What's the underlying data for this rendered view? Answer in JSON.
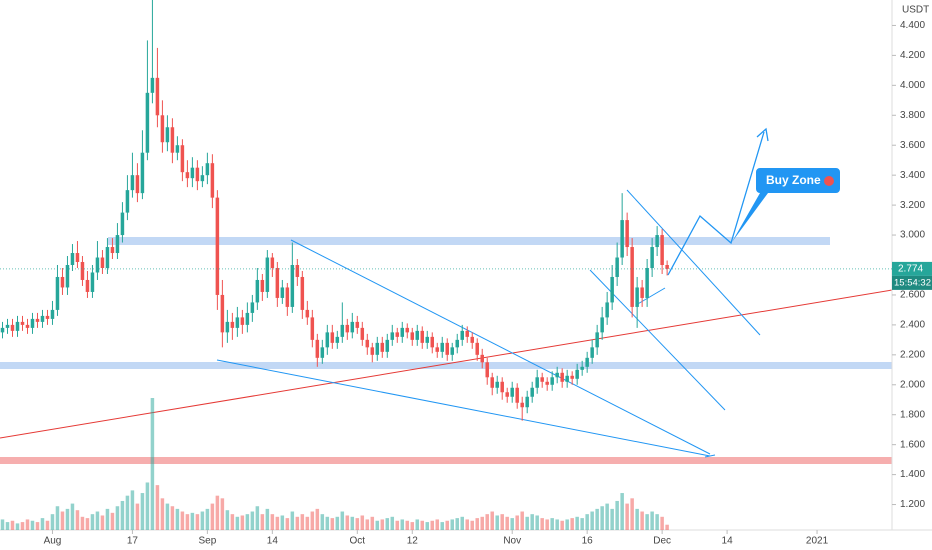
{
  "chart_data": {
    "type": "candlestick",
    "currency": "USDT",
    "up_color": "#26a69a",
    "down_color": "#ef5350",
    "ylim": [
      1.03,
      4.57
    ],
    "yticks": [
      {
        "value": 4.4,
        "label": "4.400"
      },
      {
        "value": 4.2,
        "label": "4.200"
      },
      {
        "value": 4.0,
        "label": "4.000"
      },
      {
        "value": 3.8,
        "label": "3.800"
      },
      {
        "value": 3.6,
        "label": "3.600"
      },
      {
        "value": 3.4,
        "label": "3.400"
      },
      {
        "value": 3.2,
        "label": "3.200"
      },
      {
        "value": 3.0,
        "label": "3.000"
      },
      {
        "value": 2.6,
        "label": "2.600"
      },
      {
        "value": 2.4,
        "label": "2.400"
      },
      {
        "value": 2.2,
        "label": "2.200"
      },
      {
        "value": 2.0,
        "label": "2.000"
      },
      {
        "value": 1.8,
        "label": "1.800"
      },
      {
        "value": 1.6,
        "label": "1.600"
      },
      {
        "value": 1.4,
        "label": "1.400"
      },
      {
        "value": 1.2,
        "label": "1.200"
      }
    ],
    "xlim": [
      -0.5,
      178
    ],
    "xticks": [
      {
        "value": 10,
        "label": "Aug"
      },
      {
        "value": 26,
        "label": "17"
      },
      {
        "value": 41,
        "label": "Sep"
      },
      {
        "value": 54,
        "label": "14"
      },
      {
        "value": 71,
        "label": "Oct"
      },
      {
        "value": 82,
        "label": "12"
      },
      {
        "value": 102,
        "label": "Nov"
      },
      {
        "value": 117,
        "label": "16"
      },
      {
        "value": 132,
        "label": "Dec"
      },
      {
        "value": 145,
        "label": "14"
      },
      {
        "value": 163,
        "label": "2021"
      }
    ],
    "last_price": 2.774,
    "countdown": "15:54:32",
    "annotation": "Buy Zone",
    "open": [
      2.35,
      2.38,
      2.4,
      2.36,
      2.42,
      2.4,
      2.38,
      2.44,
      2.42,
      2.46,
      2.44,
      2.5,
      2.72,
      2.65,
      2.8,
      2.88,
      2.82,
      2.7,
      2.62,
      2.75,
      2.85,
      2.78,
      2.92,
      2.88,
      3.0,
      3.15,
      3.3,
      3.4,
      3.28,
      3.55,
      3.95,
      4.05,
      3.8,
      3.62,
      3.72,
      3.55,
      3.6,
      3.42,
      3.38,
      3.45,
      3.36,
      3.4,
      3.48,
      3.25,
      2.6,
      2.35,
      2.42,
      2.38,
      2.45,
      2.4,
      2.48,
      2.55,
      2.7,
      2.62,
      2.85,
      2.78,
      2.58,
      2.65,
      2.52,
      2.8,
      2.72,
      2.5,
      2.45,
      2.3,
      2.18,
      2.25,
      2.35,
      2.28,
      2.32,
      2.4,
      2.35,
      2.42,
      2.38,
      2.3,
      2.25,
      2.2,
      2.28,
      2.22,
      2.3,
      2.35,
      2.32,
      2.38,
      2.35,
      2.3,
      2.36,
      2.28,
      2.32,
      2.25,
      2.22,
      2.28,
      2.2,
      2.25,
      2.3,
      2.36,
      2.32,
      2.28,
      2.2,
      2.15,
      2.05,
      1.98,
      2.02,
      1.95,
      1.92,
      1.98,
      1.88,
      1.85,
      1.92,
      1.98,
      2.05,
      2.02,
      2.0,
      2.05,
      2.08,
      2.02,
      2.06,
      2.04,
      2.1,
      2.12,
      2.18,
      2.25,
      2.35,
      2.45,
      2.55,
      2.72,
      2.85,
      3.1,
      2.92,
      2.52,
      2.65,
      2.58,
      2.78,
      2.92,
      3.0,
      2.8
    ],
    "high": [
      2.42,
      2.44,
      2.44,
      2.46,
      2.46,
      2.44,
      2.48,
      2.48,
      2.5,
      2.5,
      2.56,
      2.8,
      2.78,
      2.86,
      2.94,
      2.96,
      2.86,
      2.76,
      2.8,
      2.96,
      2.9,
      2.98,
      2.98,
      3.08,
      3.22,
      3.4,
      3.55,
      3.48,
      3.7,
      4.3,
      4.57,
      4.25,
      3.9,
      3.8,
      3.78,
      3.66,
      3.64,
      3.5,
      3.52,
      3.5,
      3.46,
      3.55,
      3.54,
      3.3,
      2.7,
      2.5,
      2.48,
      2.52,
      2.5,
      2.55,
      2.6,
      2.78,
      2.74,
      2.9,
      2.88,
      2.82,
      2.7,
      2.68,
      2.95,
      2.84,
      2.76,
      2.56,
      2.5,
      2.34,
      2.3,
      2.4,
      2.4,
      2.36,
      2.55,
      2.44,
      2.48,
      2.46,
      2.42,
      2.34,
      2.28,
      2.32,
      2.32,
      2.34,
      2.4,
      2.38,
      2.42,
      2.41,
      2.38,
      2.4,
      2.39,
      2.36,
      2.35,
      2.28,
      2.32,
      2.31,
      2.28,
      2.34,
      2.4,
      2.39,
      2.35,
      2.31,
      2.24,
      2.18,
      2.08,
      2.06,
      2.05,
      1.98,
      2.02,
      2.01,
      1.92,
      1.96,
      2.02,
      2.1,
      2.08,
      2.05,
      2.09,
      2.12,
      2.11,
      2.1,
      2.09,
      2.14,
      2.16,
      2.22,
      2.3,
      2.4,
      2.52,
      2.62,
      2.8,
      2.95,
      3.28,
      3.15,
      2.98,
      2.72,
      2.7,
      2.84,
      2.98,
      3.06,
      3.04,
      2.83
    ],
    "low": [
      2.31,
      2.34,
      2.32,
      2.32,
      2.36,
      2.34,
      2.34,
      2.38,
      2.38,
      2.4,
      2.4,
      2.46,
      2.6,
      2.6,
      2.76,
      2.78,
      2.66,
      2.58,
      2.58,
      2.7,
      2.74,
      2.74,
      2.84,
      2.84,
      2.95,
      3.1,
      3.25,
      3.22,
      3.24,
      3.5,
      3.88,
      3.72,
      3.55,
      3.56,
      3.48,
      3.5,
      3.36,
      3.32,
      3.32,
      3.3,
      3.32,
      3.34,
      3.18,
      2.5,
      2.25,
      2.28,
      2.3,
      2.32,
      2.34,
      2.35,
      2.42,
      2.5,
      2.56,
      2.58,
      2.72,
      2.52,
      2.54,
      2.46,
      2.48,
      2.66,
      2.44,
      2.4,
      2.25,
      2.12,
      2.14,
      2.2,
      2.24,
      2.24,
      2.28,
      2.3,
      2.31,
      2.34,
      2.26,
      2.2,
      2.15,
      2.16,
      2.18,
      2.18,
      2.26,
      2.28,
      2.28,
      2.31,
      2.26,
      2.26,
      2.24,
      2.24,
      2.21,
      2.18,
      2.18,
      2.16,
      2.16,
      2.21,
      2.26,
      2.28,
      2.24,
      2.16,
      2.11,
      2.0,
      1.93,
      1.94,
      1.9,
      1.88,
      1.88,
      1.84,
      1.76,
      1.81,
      1.88,
      1.94,
      1.98,
      1.96,
      1.96,
      2.01,
      1.98,
      1.98,
      2.0,
      2.0,
      2.06,
      2.08,
      2.14,
      2.2,
      2.3,
      2.4,
      2.5,
      2.66,
      2.8,
      2.86,
      2.45,
      2.38,
      2.52,
      2.52,
      2.72,
      2.86,
      2.74,
      2.73
    ],
    "close": [
      2.38,
      2.4,
      2.36,
      2.42,
      2.4,
      2.38,
      2.44,
      2.42,
      2.46,
      2.44,
      2.5,
      2.72,
      2.65,
      2.8,
      2.88,
      2.82,
      2.7,
      2.62,
      2.75,
      2.85,
      2.78,
      2.92,
      2.88,
      3.0,
      3.15,
      3.3,
      3.4,
      3.28,
      3.55,
      3.95,
      4.05,
      3.8,
      3.62,
      3.72,
      3.55,
      3.6,
      3.42,
      3.38,
      3.45,
      3.36,
      3.4,
      3.48,
      3.25,
      2.6,
      2.35,
      2.42,
      2.38,
      2.45,
      2.4,
      2.48,
      2.55,
      2.7,
      2.62,
      2.85,
      2.78,
      2.58,
      2.65,
      2.52,
      2.8,
      2.72,
      2.5,
      2.45,
      2.3,
      2.18,
      2.25,
      2.35,
      2.28,
      2.32,
      2.4,
      2.35,
      2.42,
      2.38,
      2.3,
      2.25,
      2.2,
      2.28,
      2.22,
      2.3,
      2.35,
      2.32,
      2.38,
      2.35,
      2.3,
      2.36,
      2.28,
      2.32,
      2.25,
      2.22,
      2.28,
      2.2,
      2.25,
      2.3,
      2.36,
      2.32,
      2.28,
      2.2,
      2.15,
      2.05,
      1.98,
      2.02,
      1.95,
      1.92,
      1.98,
      1.88,
      1.85,
      1.92,
      1.98,
      2.05,
      2.02,
      2.0,
      2.05,
      2.08,
      2.02,
      2.06,
      2.04,
      2.1,
      2.12,
      2.18,
      2.25,
      2.35,
      2.45,
      2.55,
      2.72,
      2.85,
      3.1,
      2.92,
      2.52,
      2.65,
      2.58,
      2.78,
      2.92,
      3.0,
      2.8,
      2.774
    ],
    "volume": [
      8,
      6,
      7,
      5,
      6,
      8,
      7,
      6,
      9,
      7,
      12,
      18,
      14,
      16,
      20,
      15,
      10,
      9,
      12,
      14,
      11,
      16,
      13,
      18,
      22,
      26,
      30,
      20,
      28,
      36,
      100,
      34,
      24,
      20,
      18,
      16,
      14,
      12,
      13,
      12,
      14,
      16,
      20,
      26,
      24,
      15,
      12,
      10,
      11,
      12,
      14,
      18,
      12,
      16,
      12,
      10,
      11,
      9,
      14,
      10,
      12,
      10,
      14,
      16,
      12,
      10,
      9,
      10,
      14,
      11,
      10,
      9,
      11,
      8,
      10,
      7,
      8,
      9,
      10,
      7,
      8,
      7,
      6,
      8,
      7,
      6,
      7,
      8,
      6,
      7,
      8,
      9,
      10,
      8,
      7,
      9,
      10,
      12,
      14,
      11,
      12,
      10,
      9,
      11,
      14,
      10,
      12,
      11,
      9,
      8,
      9,
      8,
      7,
      8,
      9,
      10,
      9,
      12,
      14,
      16,
      18,
      20,
      16,
      22,
      28,
      20,
      24,
      16,
      14,
      12,
      14,
      12,
      10,
      4
    ]
  }
}
